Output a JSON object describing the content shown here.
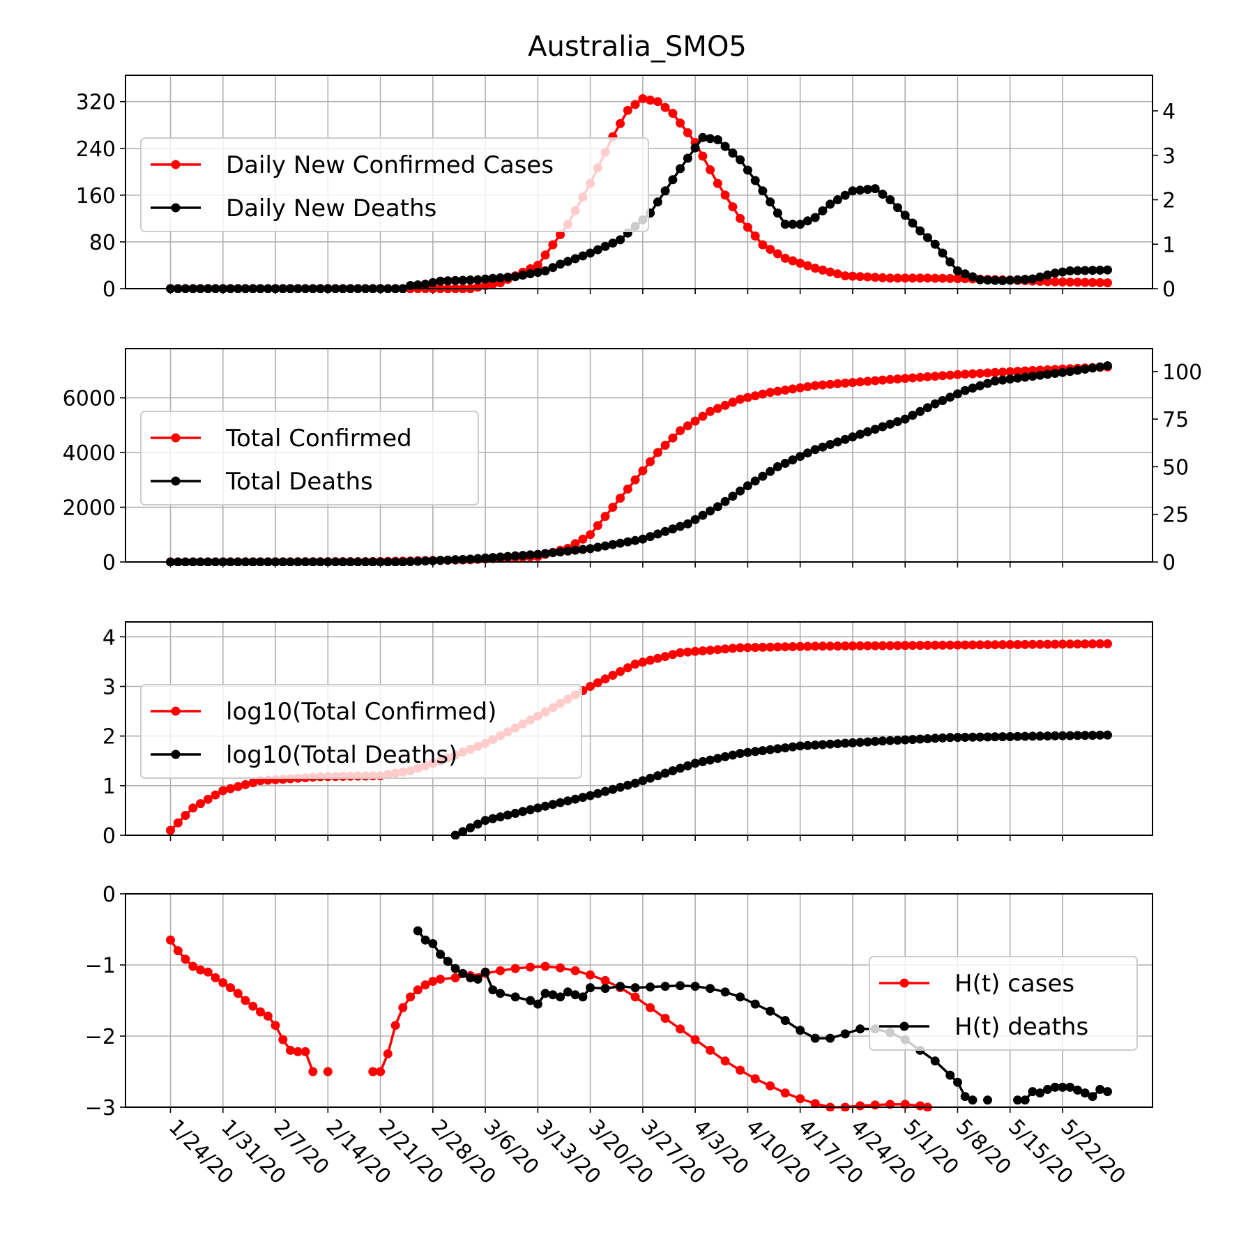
{
  "title": "Australia_SMO5",
  "colors": {
    "cases": "#ff0000",
    "deaths": "#000000",
    "grid": "#b0b0b0"
  },
  "x_axis": {
    "tick_days": [
      0,
      7,
      14,
      21,
      28,
      35,
      42,
      49,
      56,
      63,
      70,
      77,
      84,
      91,
      98,
      105,
      112,
      119
    ],
    "tick_labels": [
      "1/24/20",
      "1/31/20",
      "2/7/20",
      "2/14/20",
      "2/21/20",
      "2/28/20",
      "3/6/20",
      "3/13/20",
      "3/20/20",
      "3/27/20",
      "4/3/20",
      "4/10/20",
      "4/17/20",
      "4/24/20",
      "5/1/20",
      "5/8/20",
      "5/15/20",
      "5/22/20"
    ],
    "range": [
      -6,
      131
    ],
    "last_day": 125
  },
  "chart_data": [
    {
      "type": "line",
      "panel": "daily",
      "series": [
        {
          "name": "Daily New Confirmed Cases",
          "axis": "left",
          "keys": [
            [
              0,
              0
            ],
            [
              14,
              0
            ],
            [
              30,
              0
            ],
            [
              40,
              0
            ],
            [
              44,
              10
            ],
            [
              49,
              40
            ],
            [
              53,
              110
            ],
            [
              56,
              180
            ],
            [
              59,
              260
            ],
            [
              61,
              305
            ],
            [
              63,
              325
            ],
            [
              65,
              320
            ],
            [
              67,
              300
            ],
            [
              70,
              250
            ],
            [
              73,
              180
            ],
            [
              76,
              120
            ],
            [
              79,
              75
            ],
            [
              82,
              52
            ],
            [
              86,
              35
            ],
            [
              90,
              22
            ],
            [
              96,
              18
            ],
            [
              101,
              18
            ],
            [
              106,
              17
            ],
            [
              111,
              15
            ],
            [
              117,
              12
            ],
            [
              125,
              10
            ]
          ]
        },
        {
          "name": "Daily New Deaths",
          "axis": "right",
          "keys": [
            [
              0,
              0
            ],
            [
              31,
              0
            ],
            [
              32,
              0.07
            ],
            [
              34,
              0.1
            ],
            [
              36,
              0.17
            ],
            [
              41,
              0.2
            ],
            [
              43,
              0.23
            ],
            [
              46,
              0.27
            ],
            [
              50,
              0.4
            ],
            [
              52,
              0.55
            ],
            [
              56,
              0.8
            ],
            [
              60,
              1.1
            ],
            [
              64,
              1.7
            ],
            [
              68,
              2.7
            ],
            [
              71,
              3.4
            ],
            [
              73,
              3.35
            ],
            [
              76,
              2.9
            ],
            [
              79,
              2.2
            ],
            [
              82,
              1.45
            ],
            [
              84,
              1.45
            ],
            [
              86,
              1.6
            ],
            [
              88,
              1.9
            ],
            [
              91,
              2.2
            ],
            [
              94,
              2.25
            ],
            [
              96,
              2.0
            ],
            [
              100,
              1.3
            ],
            [
              102,
              1.0
            ],
            [
              105,
              0.4
            ],
            [
              108,
              0.2
            ],
            [
              111,
              0.18
            ],
            [
              115,
              0.22
            ],
            [
              118,
              0.35
            ],
            [
              120,
              0.4
            ],
            [
              125,
              0.42
            ]
          ]
        }
      ],
      "left_ticks": [
        0,
        80,
        160,
        240,
        320
      ],
      "right_ticks": [
        0,
        1,
        2,
        3,
        4
      ],
      "ylim_left": [
        0,
        365
      ],
      "ylim_right": [
        0,
        4.8
      ],
      "legend": "upper-left"
    },
    {
      "type": "line",
      "panel": "total",
      "series": [
        {
          "name": "Total Confirmed",
          "axis": "left",
          "keys": [
            [
              0,
              0
            ],
            [
              28,
              15
            ],
            [
              40,
              80
            ],
            [
              49,
              200
            ],
            [
              53,
              500
            ],
            [
              56,
              1000
            ],
            [
              59,
              2000
            ],
            [
              62,
              3000
            ],
            [
              65,
              4000
            ],
            [
              68,
              4800
            ],
            [
              72,
              5500
            ],
            [
              76,
              5950
            ],
            [
              80,
              6200
            ],
            [
              86,
              6450
            ],
            [
              95,
              6650
            ],
            [
              105,
              6850
            ],
            [
              115,
              7000
            ],
            [
              125,
              7130
            ]
          ]
        },
        {
          "name": "Total Deaths",
          "axis": "right",
          "keys": [
            [
              0,
              0
            ],
            [
              31,
              0
            ],
            [
              40,
              1.5
            ],
            [
              49,
              4
            ],
            [
              56,
              7
            ],
            [
              63,
              12
            ],
            [
              69,
              20
            ],
            [
              73,
              29
            ],
            [
              77,
              40
            ],
            [
              81,
              50
            ],
            [
              86,
              59
            ],
            [
              92,
              67
            ],
            [
              98,
              75
            ],
            [
              102,
              83
            ],
            [
              106,
              90
            ],
            [
              110,
              95
            ],
            [
              115,
              97.5
            ],
            [
              120,
              100
            ],
            [
              125,
              103
            ]
          ]
        }
      ],
      "left_ticks": [
        0,
        2000,
        4000,
        6000
      ],
      "right_ticks": [
        0,
        25,
        50,
        75,
        100
      ],
      "ylim_left": [
        0,
        7800
      ],
      "ylim_right": [
        0,
        112
      ],
      "legend": "upper-left"
    },
    {
      "type": "line",
      "panel": "log",
      "series": [
        {
          "name": "log10(Total Confirmed)",
          "axis": "left",
          "keys": [
            [
              0,
              0.1
            ],
            [
              3,
              0.55
            ],
            [
              7,
              0.9
            ],
            [
              12,
              1.1
            ],
            [
              20,
              1.18
            ],
            [
              28,
              1.2
            ],
            [
              32,
              1.3
            ],
            [
              36,
              1.5
            ],
            [
              42,
              1.85
            ],
            [
              49,
              2.4
            ],
            [
              56,
              3.0
            ],
            [
              62,
              3.45
            ],
            [
              68,
              3.68
            ],
            [
              76,
              3.78
            ],
            [
              86,
              3.81
            ],
            [
              110,
              3.84
            ],
            [
              125,
              3.86
            ]
          ]
        },
        {
          "name": "log10(Total Deaths)",
          "axis": "left",
          "keys": [
            [
              38,
              0
            ],
            [
              42,
              0.3
            ],
            [
              49,
              0.55
            ],
            [
              56,
              0.8
            ],
            [
              62,
              1.05
            ],
            [
              70,
              1.45
            ],
            [
              76,
              1.65
            ],
            [
              84,
              1.8
            ],
            [
              95,
              1.9
            ],
            [
              104,
              1.97
            ],
            [
              125,
              2.02
            ]
          ]
        }
      ],
      "left_ticks": [
        0,
        1,
        2,
        3,
        4
      ],
      "ylim_left": [
        0,
        4.3
      ],
      "legend": "upper-left"
    },
    {
      "type": "line",
      "panel": "entropy",
      "series": [
        {
          "name": "H(t) cases",
          "axis": "left",
          "points": [
            [
              0,
              -0.65
            ],
            [
              1,
              -0.8
            ],
            [
              2,
              -0.92
            ],
            [
              3,
              -1.02
            ],
            [
              4,
              -1.07
            ],
            [
              5,
              -1.1
            ],
            [
              6,
              -1.18
            ],
            [
              7,
              -1.25
            ],
            [
              8,
              -1.32
            ],
            [
              9,
              -1.4
            ],
            [
              10,
              -1.5
            ],
            [
              11,
              -1.58
            ],
            [
              12,
              -1.66
            ],
            [
              13,
              -1.72
            ],
            [
              14,
              -1.85
            ],
            [
              15,
              -2.05
            ],
            [
              16,
              -2.2
            ],
            [
              17,
              -2.22
            ],
            [
              18,
              -2.22
            ],
            [
              19,
              -2.5
            ],
            [
              null,
              null
            ],
            [
              21,
              -2.5
            ],
            [
              null,
              null
            ],
            [
              27,
              -2.5
            ],
            [
              28,
              -2.5
            ],
            [
              29,
              -2.25
            ],
            [
              30,
              -1.85
            ],
            [
              31,
              -1.6
            ],
            [
              32,
              -1.45
            ],
            [
              33,
              -1.35
            ],
            [
              34,
              -1.28
            ],
            [
              35,
              -1.23
            ],
            [
              36,
              -1.2
            ],
            [
              38,
              -1.18
            ],
            [
              40,
              -1.15
            ],
            [
              42,
              -1.12
            ],
            [
              44,
              -1.08
            ],
            [
              46,
              -1.05
            ],
            [
              48,
              -1.03
            ],
            [
              50,
              -1.02
            ],
            [
              52,
              -1.04
            ],
            [
              54,
              -1.08
            ],
            [
              56,
              -1.14
            ],
            [
              58,
              -1.22
            ],
            [
              60,
              -1.32
            ],
            [
              62,
              -1.45
            ],
            [
              64,
              -1.6
            ],
            [
              66,
              -1.75
            ],
            [
              68,
              -1.9
            ],
            [
              70,
              -2.05
            ],
            [
              72,
              -2.2
            ],
            [
              74,
              -2.35
            ],
            [
              76,
              -2.48
            ],
            [
              78,
              -2.6
            ],
            [
              80,
              -2.7
            ],
            [
              82,
              -2.8
            ],
            [
              84,
              -2.88
            ],
            [
              86,
              -2.95
            ],
            [
              88,
              -3.0
            ],
            [
              90,
              -3.0
            ],
            [
              92,
              -2.98
            ],
            [
              94,
              -2.97
            ],
            [
              96,
              -2.96
            ],
            [
              98,
              -2.96
            ],
            [
              100,
              -2.98
            ],
            [
              101,
              -3.0
            ]
          ]
        },
        {
          "name": "H(t) deaths",
          "axis": "left",
          "points": [
            [
              33,
              -0.52
            ],
            [
              34,
              -0.65
            ],
            [
              35,
              -0.7
            ],
            [
              36,
              -0.85
            ],
            [
              37,
              -0.95
            ],
            [
              38,
              -1.05
            ],
            [
              39,
              -1.12
            ],
            [
              40,
              -1.18
            ],
            [
              41,
              -1.2
            ],
            [
              42,
              -1.1
            ],
            [
              43,
              -1.35
            ],
            [
              44,
              -1.4
            ],
            [
              46,
              -1.45
            ],
            [
              48,
              -1.5
            ],
            [
              49,
              -1.55
            ],
            [
              50,
              -1.4
            ],
            [
              51,
              -1.42
            ],
            [
              52,
              -1.45
            ],
            [
              53,
              -1.38
            ],
            [
              54,
              -1.42
            ],
            [
              55,
              -1.45
            ],
            [
              56,
              -1.32
            ],
            [
              58,
              -1.33
            ],
            [
              60,
              -1.3
            ],
            [
              62,
              -1.32
            ],
            [
              64,
              -1.31
            ],
            [
              66,
              -1.3
            ],
            [
              68,
              -1.29
            ],
            [
              70,
              -1.3
            ],
            [
              72,
              -1.33
            ],
            [
              74,
              -1.38
            ],
            [
              76,
              -1.45
            ],
            [
              78,
              -1.55
            ],
            [
              80,
              -1.65
            ],
            [
              82,
              -1.78
            ],
            [
              84,
              -1.92
            ],
            [
              86,
              -2.03
            ],
            [
              88,
              -2.03
            ],
            [
              90,
              -1.97
            ],
            [
              92,
              -1.9
            ],
            [
              94,
              -1.9
            ],
            [
              96,
              -1.95
            ],
            [
              98,
              -2.05
            ],
            [
              100,
              -2.2
            ],
            [
              102,
              -2.35
            ],
            [
              104,
              -2.55
            ],
            [
              105,
              -2.65
            ],
            [
              106,
              -2.85
            ],
            [
              107,
              -2.9
            ],
            [
              null,
              null
            ],
            [
              109,
              -2.9
            ],
            [
              null,
              null
            ],
            [
              113,
              -2.9
            ],
            [
              114,
              -2.9
            ],
            [
              115,
              -2.78
            ],
            [
              116,
              -2.8
            ],
            [
              117,
              -2.75
            ],
            [
              118,
              -2.72
            ],
            [
              119,
              -2.72
            ],
            [
              120,
              -2.72
            ],
            [
              121,
              -2.76
            ],
            [
              122,
              -2.8
            ],
            [
              123,
              -2.85
            ],
            [
              124,
              -2.75
            ],
            [
              125,
              -2.78
            ]
          ]
        }
      ],
      "left_ticks": [
        -3,
        -2,
        -1,
        0
      ],
      "ylim_left": [
        -3,
        0
      ],
      "legend": "upper-right"
    }
  ]
}
